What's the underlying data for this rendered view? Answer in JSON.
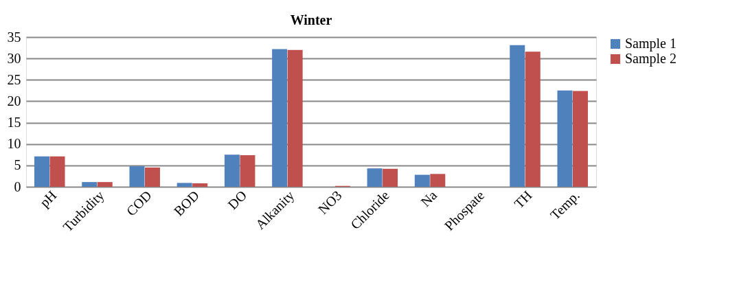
{
  "chart_data": {
    "type": "bar",
    "title": "Winter",
    "categories": [
      "pH",
      "Turbidity",
      "COD",
      "BOD",
      "DO",
      "Alkanity",
      "NO3",
      "Chloride",
      "Na",
      "Phospate",
      "TH",
      "Temp."
    ],
    "series": [
      {
        "name": "Sample 1",
        "color": "#4f81bd",
        "values": [
          7.1,
          1.1,
          4.8,
          0.9,
          7.5,
          32.2,
          0,
          4.3,
          2.8,
          0,
          33.1,
          22.5
        ]
      },
      {
        "name": "Sample 2",
        "color": "#c0504d",
        "values": [
          7.1,
          1.1,
          4.5,
          0.8,
          7.4,
          32.0,
          0.2,
          4.2,
          3.0,
          0,
          31.6,
          22.4
        ]
      }
    ],
    "ylim": [
      0,
      35
    ],
    "yticks": [
      0,
      5,
      10,
      15,
      20,
      25,
      30,
      35
    ],
    "grid": "y",
    "legend": "right"
  }
}
